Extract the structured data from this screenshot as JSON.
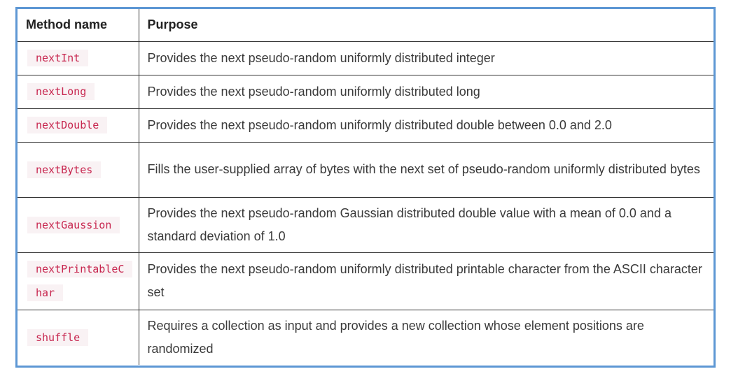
{
  "table": {
    "headers": [
      "Method name",
      "Purpose"
    ],
    "rows": [
      {
        "method": "nextInt",
        "purpose": "Provides the next pseudo-random uniformly distributed integer"
      },
      {
        "method": "nextLong",
        "purpose": "Provides the next pseudo-random uniformly distributed long"
      },
      {
        "method": "nextDouble",
        "purpose": "Provides the next pseudo-random uniformly distributed double between 0.0 and 2.0"
      },
      {
        "method": "nextBytes",
        "purpose": "Fills the user-supplied array of bytes with the next set of pseudo-random uniformly distributed bytes"
      },
      {
        "method": "nextGaussion",
        "purpose": "Provides the next pseudo-random Gaussian distributed double value with a mean of 0.0 and a standard deviation of 1.0"
      },
      {
        "method": "nextPrintableChar",
        "purpose": "Provides the next pseudo-random uniformly distributed printable character from the ASCII character set"
      },
      {
        "method": "shuffle",
        "purpose": "Requires a collection as input and provides a new collection whose element positions are randomized"
      }
    ]
  },
  "colors": {
    "frame_border": "#5d97d4",
    "code_text": "#c7254e",
    "code_background": "#f9f2f4"
  }
}
